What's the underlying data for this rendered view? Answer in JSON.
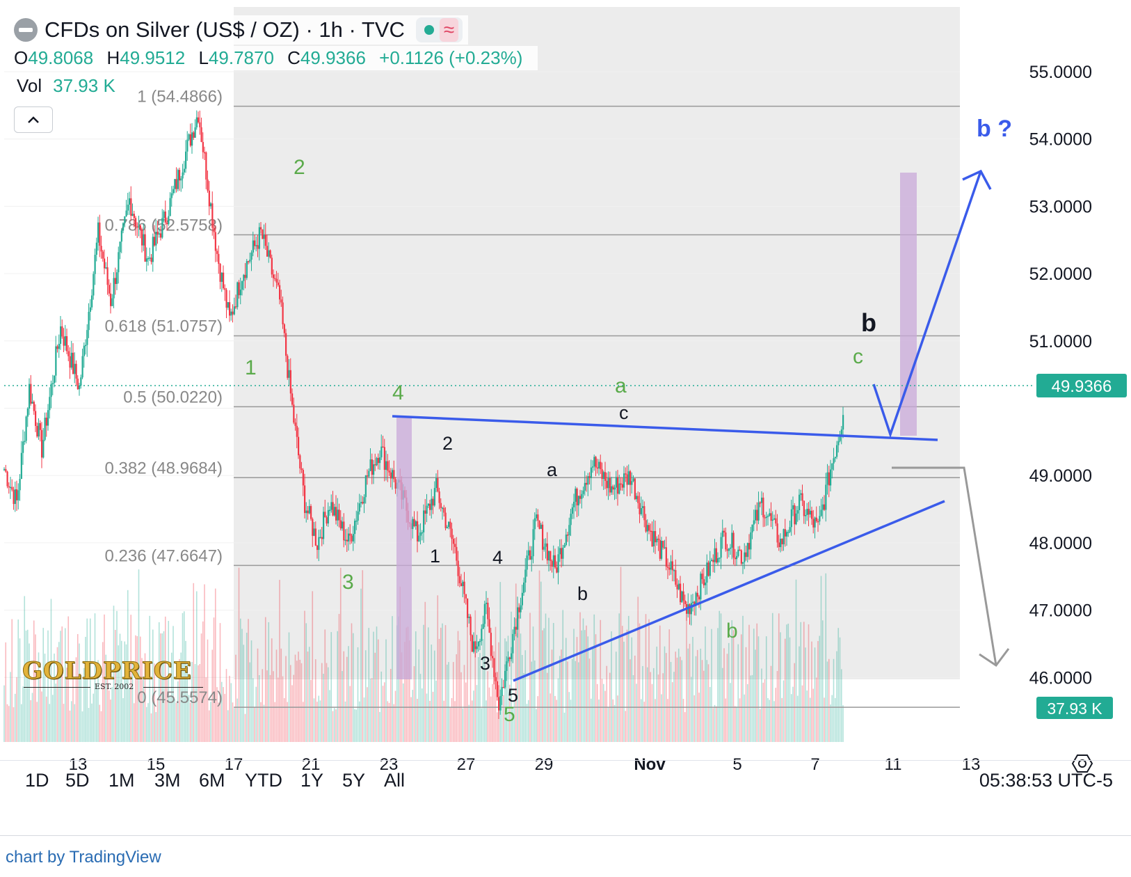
{
  "header": {
    "symbol_title": "CFDs on Silver (US$ / OZ) · 1h · TVC",
    "wave_icon": "≈",
    "ohlc": {
      "o_label": "O",
      "o_value": "49.8068",
      "h_label": "H",
      "h_value": "49.9512",
      "l_label": "L",
      "l_value": "49.7870",
      "c_label": "C",
      "c_value": "49.9366",
      "change": "+0.1126 (+0.23%)"
    },
    "vol_label": "Vol",
    "vol_value": "37.93 K"
  },
  "colors": {
    "up": "#22ab94",
    "down": "#f23645",
    "blue_annotation": "#3a5bea",
    "green_wave": "#5aaa4a",
    "purple_box": "#c9a9d9",
    "fib_line": "#999999"
  },
  "chart_data": {
    "type": "candlestick",
    "title": "CFDs on Silver (US$ / OZ) · 1h · TVC",
    "ylim": [
      45.5,
      55.6
    ],
    "y_ticks": [
      "55.0000",
      "54.0000",
      "53.0000",
      "52.0000",
      "51.0000",
      "49.0000",
      "48.0000",
      "47.0000",
      "46.0000"
    ],
    "x_ticks": [
      "13",
      "15",
      "17",
      "21",
      "23",
      "27",
      "29",
      "Nov",
      "5",
      "7",
      "11",
      "13"
    ],
    "last_price": "49.9366",
    "last_volume": "37.93 K",
    "price_path": [
      {
        "t": 0,
        "p": 49.1
      },
      {
        "t": 2,
        "p": 48.6
      },
      {
        "t": 4,
        "p": 50.3
      },
      {
        "t": 6,
        "p": 49.4
      },
      {
        "t": 9,
        "p": 51.2
      },
      {
        "t": 12,
        "p": 50.3
      },
      {
        "t": 15,
        "p": 52.6
      },
      {
        "t": 17,
        "p": 51.6
      },
      {
        "t": 20,
        "p": 53.1
      },
      {
        "t": 23,
        "p": 52.2
      },
      {
        "t": 26,
        "p": 52.9
      },
      {
        "t": 29,
        "p": 53.8
      },
      {
        "t": 31,
        "p": 54.4
      },
      {
        "t": 34,
        "p": 52.3
      },
      {
        "t": 36,
        "p": 51.3
      },
      {
        "t": 38,
        "p": 52.0
      },
      {
        "t": 41,
        "p": 52.6
      },
      {
        "t": 44,
        "p": 51.6
      },
      {
        "t": 46,
        "p": 50.0
      },
      {
        "t": 48,
        "p": 48.6
      },
      {
        "t": 50,
        "p": 48.0
      },
      {
        "t": 52,
        "p": 48.6
      },
      {
        "t": 55,
        "p": 48.0
      },
      {
        "t": 58,
        "p": 49.0
      },
      {
        "t": 60,
        "p": 49.4
      },
      {
        "t": 63,
        "p": 48.8
      },
      {
        "t": 66,
        "p": 48.1
      },
      {
        "t": 69,
        "p": 48.8
      },
      {
        "t": 72,
        "p": 47.9
      },
      {
        "t": 75,
        "p": 46.4
      },
      {
        "t": 77,
        "p": 47.0
      },
      {
        "t": 79,
        "p": 45.6
      },
      {
        "t": 82,
        "p": 47.0
      },
      {
        "t": 85,
        "p": 48.3
      },
      {
        "t": 88,
        "p": 47.6
      },
      {
        "t": 91,
        "p": 48.6
      },
      {
        "t": 94,
        "p": 49.2
      },
      {
        "t": 97,
        "p": 48.8
      },
      {
        "t": 100,
        "p": 49.0
      },
      {
        "t": 103,
        "p": 48.2
      },
      {
        "t": 106,
        "p": 47.7
      },
      {
        "t": 109,
        "p": 47.0
      },
      {
        "t": 112,
        "p": 47.5
      },
      {
        "t": 115,
        "p": 48.1
      },
      {
        "t": 118,
        "p": 47.8
      },
      {
        "t": 121,
        "p": 48.6
      },
      {
        "t": 124,
        "p": 48.0
      },
      {
        "t": 127,
        "p": 48.6
      },
      {
        "t": 130,
        "p": 48.2
      },
      {
        "t": 132,
        "p": 49.1
      },
      {
        "t": 134,
        "p": 49.9
      }
    ],
    "fib_levels": [
      {
        "label": "1 (54.4866)",
        "value": 54.4866
      },
      {
        "label": "0.786 (52.5758)",
        "value": 52.5758
      },
      {
        "label": "0.618 (51.0757)",
        "value": 51.0757
      },
      {
        "label": "0.5 (50.0220)",
        "value": 50.022
      },
      {
        "label": "0.382 (48.9684)",
        "value": 48.9684
      },
      {
        "label": "0.236 (47.6647)",
        "value": 47.6647
      },
      {
        "label": "0 (45.5574)",
        "value": 45.5574
      }
    ],
    "wave_labels_green": [
      "1",
      "2",
      "3",
      "4",
      "5",
      "a",
      "b",
      "c"
    ],
    "wave_labels_black": [
      "1",
      "2",
      "3",
      "4",
      "5",
      "a",
      "b",
      "c",
      "b"
    ],
    "projection_label": "b ?"
  },
  "range_buttons": [
    "1D",
    "5D",
    "1M",
    "3M",
    "6M",
    "YTD",
    "1Y",
    "5Y",
    "All"
  ],
  "clock": "05:38:53 UTC-5",
  "credit": "chart by TradingView",
  "watermark": {
    "brand": "GOLDPRICE",
    "est": "EST. 2002"
  }
}
